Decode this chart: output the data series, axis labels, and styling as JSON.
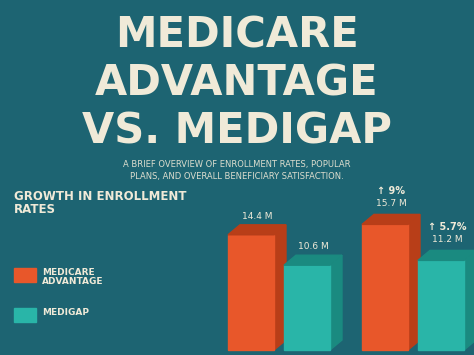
{
  "bg_color": "#1d6472",
  "title_lines": [
    "MEDICARE",
    "ADVANTAGE",
    "VS. MEDIGAP"
  ],
  "subtitle_line1": "A BRIEF OVERVIEW OF ENROLLMENT RATES, POPULAR",
  "subtitle_line2": "PLANS, AND OVERALL BENEFICIARY SATISFACTION.",
  "section_title_line1": "GROWTH IN ENROLLMENT",
  "section_title_line2": "RATES",
  "text_color": "#f0ead8",
  "orange_front": "#e8572a",
  "orange_dark": "#b83e18",
  "teal_front": "#29b5a8",
  "teal_dark": "#1a8a80",
  "bars": [
    {
      "value": 14.4,
      "label": "14.4 M",
      "type": "orange",
      "growth": null
    },
    {
      "value": 10.6,
      "label": "10.6 M",
      "type": "teal",
      "growth": null
    },
    {
      "value": 15.7,
      "label": "15.7 M",
      "type": "orange",
      "growth": "↑ 9%"
    },
    {
      "value": 11.2,
      "label": "11.2 M",
      "type": "teal",
      "growth": "↑ 5.7%"
    }
  ],
  "max_val": 17.5,
  "legend": [
    {
      "label1": "MEDICARE",
      "label2": "ADVANTAGE",
      "color": "#e8572a"
    },
    {
      "label1": "MEDIGAP",
      "label2": "",
      "color": "#29b5a8"
    }
  ]
}
